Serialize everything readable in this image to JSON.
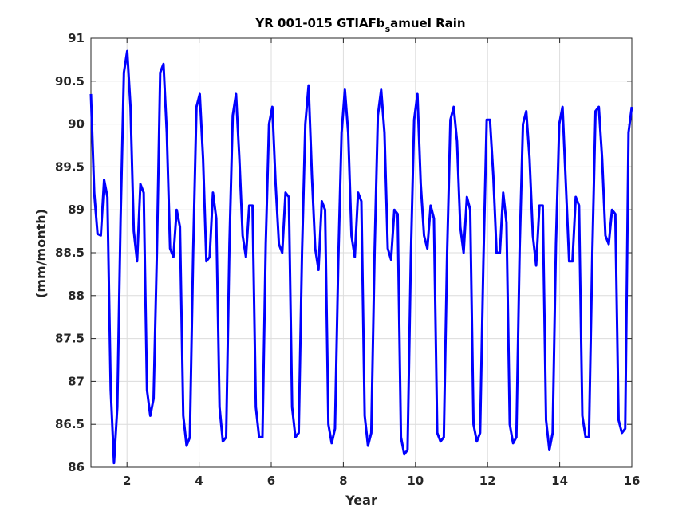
{
  "chart_data": {
    "type": "line",
    "title": "YR 001-015 GTIAFb_samuel Rain",
    "title_main": "YR 001-015 GTIAFb",
    "title_sub": "s",
    "title_rest": "amuel Rain",
    "xlabel": "Year",
    "ylabel": "(mm/month)",
    "xlim": [
      1,
      16
    ],
    "ylim": [
      86,
      91
    ],
    "xticks": [
      2,
      4,
      6,
      8,
      10,
      12,
      14,
      16
    ],
    "yticks": [
      86,
      86.5,
      87,
      87.5,
      88,
      88.5,
      89,
      89.5,
      90,
      90.5,
      91
    ],
    "xtick_labels": [
      "2",
      "4",
      "6",
      "8",
      "10",
      "12",
      "14",
      "16"
    ],
    "ytick_labels": [
      "86",
      "86.5",
      "87",
      "87.5",
      "88",
      "88.5",
      "89",
      "89.5",
      "90",
      "90.5",
      "91"
    ],
    "grid": true,
    "line_color": "#0000ff",
    "series": [
      {
        "values": [
          90.35,
          89.2,
          88.72,
          88.7,
          89.35,
          89.15,
          86.9,
          86.05,
          86.7,
          88.9,
          90.6,
          90.85,
          90.2,
          88.75,
          88.4,
          89.3,
          89.2,
          86.9,
          86.6,
          86.8,
          88.5,
          90.6,
          90.7,
          89.9,
          88.55,
          88.45,
          89.0,
          88.8,
          86.6,
          86.25,
          86.35,
          88.5,
          90.2,
          90.35,
          89.6,
          88.4,
          88.45,
          89.2,
          88.9,
          86.7,
          86.3,
          86.35,
          88.6,
          90.1,
          90.35,
          89.6,
          88.7,
          88.45,
          89.05,
          89.05,
          86.7,
          86.35,
          86.35,
          88.6,
          90.0,
          90.2,
          89.3,
          88.6,
          88.5,
          89.2,
          89.15,
          86.7,
          86.35,
          86.4,
          88.5,
          90.0,
          90.45,
          89.4,
          88.55,
          88.3,
          89.1,
          89.0,
          86.5,
          86.28,
          86.45,
          88.4,
          89.9,
          90.4,
          89.9,
          88.7,
          88.45,
          89.2,
          89.1,
          86.6,
          86.25,
          86.4,
          88.5,
          90.1,
          90.4,
          89.9,
          88.55,
          88.42,
          89.0,
          88.95,
          86.35,
          86.15,
          86.2,
          88.45,
          90.05,
          90.35,
          89.3,
          88.7,
          88.55,
          89.05,
          88.9,
          86.4,
          86.3,
          86.35,
          88.5,
          90.05,
          90.2,
          89.8,
          88.8,
          88.5,
          89.15,
          89.0,
          86.5,
          86.3,
          86.4,
          88.4,
          90.05,
          90.05,
          89.4,
          88.5,
          88.5,
          89.2,
          88.85,
          86.5,
          86.28,
          86.35,
          88.55,
          90.0,
          90.15,
          89.6,
          88.7,
          88.35,
          89.05,
          89.05,
          86.55,
          86.2,
          86.4,
          88.6,
          90.0,
          90.2,
          89.3,
          88.4,
          88.4,
          89.15,
          89.05,
          86.6,
          86.35,
          86.35,
          88.45,
          90.15,
          90.2,
          89.6,
          88.7,
          88.6,
          89.0,
          88.95,
          86.55,
          86.4,
          86.45,
          89.9,
          90.2
        ]
      }
    ]
  }
}
